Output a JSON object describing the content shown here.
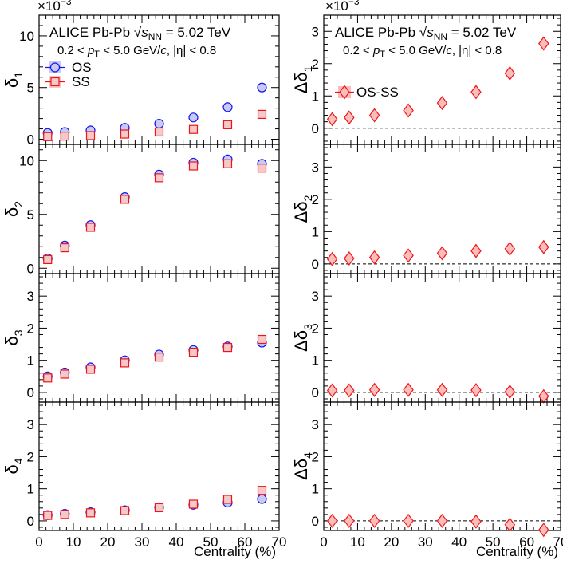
{
  "chart_data": {
    "type": "scatter",
    "x_label": "Centrality (%)",
    "x_range": [
      0,
      70
    ],
    "x_ticks": [
      "0",
      "10",
      "20",
      "30",
      "40",
      "50",
      "60",
      "70"
    ],
    "centrality": [
      2.5,
      7.5,
      15,
      25,
      35,
      45,
      55,
      65
    ],
    "multiplier": "×10",
    "multiplier_exp": "−3",
    "annotation": {
      "experiment": "ALICE Pb-Pb",
      "sqrt": "√",
      "s": "s",
      "nn": "NN",
      "energy": " = 5.02 TeV",
      "kin_pre": "0.2 < ",
      "kin_p": "p",
      "kin_T": "T",
      "kin_mid": " < 5.0 GeV/",
      "kin_c": "c",
      "kin_post": ", |η| < 0.8"
    },
    "legend_left": {
      "os": "OS",
      "ss": "SS"
    },
    "legend_right": {
      "diff": "OS-SS"
    },
    "colors": {
      "os_fill": "#c9c9f5",
      "os_edge": "#1515ee",
      "ss_fill": "#f5c9c9",
      "ss_edge": "#ee1515",
      "diff_fill": "#fbbcbc",
      "diff_edge": "#ee1515"
    },
    "left_panels": [
      {
        "ylabel_main": "δ",
        "ylabel_sub": "1",
        "ylim": [
          -0.5,
          12
        ],
        "ticks": [
          "0",
          "5",
          "10"
        ],
        "series": [
          {
            "name": "OS",
            "values": [
              0.6,
              0.7,
              0.85,
              1.1,
              1.5,
              2.1,
              3.1,
              5.0
            ]
          },
          {
            "name": "SS",
            "values": [
              0.25,
              0.3,
              0.35,
              0.5,
              0.7,
              0.95,
              1.4,
              2.4
            ]
          }
        ]
      },
      {
        "ylabel_main": "δ",
        "ylabel_sub": "2",
        "ylim": [
          -0.5,
          11.5
        ],
        "ticks": [
          "0",
          "5",
          "10"
        ],
        "series": [
          {
            "name": "OS",
            "values": [
              0.9,
              2.1,
              4.0,
              6.6,
              8.7,
              9.8,
              10.1,
              9.7
            ]
          },
          {
            "name": "SS",
            "values": [
              0.8,
              1.9,
              3.8,
              6.4,
              8.4,
              9.5,
              9.7,
              9.3
            ]
          }
        ]
      },
      {
        "ylabel_main": "δ",
        "ylabel_sub": "3",
        "ylim": [
          -0.3,
          3.7
        ],
        "ticks": [
          "0",
          "1",
          "2",
          "3"
        ],
        "series": [
          {
            "name": "OS",
            "values": [
              0.5,
              0.62,
              0.78,
              1.0,
              1.18,
              1.32,
              1.43,
              1.55
            ]
          },
          {
            "name": "SS",
            "values": [
              0.45,
              0.57,
              0.72,
              0.92,
              1.1,
              1.25,
              1.4,
              1.65
            ]
          }
        ]
      },
      {
        "ylabel_main": "δ",
        "ylabel_sub": "4",
        "ylim": [
          -0.3,
          3.7
        ],
        "ticks": [
          "0",
          "1",
          "2",
          "3"
        ],
        "series": [
          {
            "name": "OS",
            "values": [
              0.18,
              0.22,
              0.27,
              0.33,
              0.42,
              0.5,
              0.57,
              0.68
            ]
          },
          {
            "name": "SS",
            "values": [
              0.17,
              0.2,
              0.25,
              0.32,
              0.41,
              0.52,
              0.67,
              0.95
            ]
          }
        ]
      }
    ],
    "right_panels": [
      {
        "ylabel_main": "Δδ",
        "ylabel_sub": "1",
        "ylim": [
          -0.5,
          3.5
        ],
        "ticks": [
          "0",
          "1",
          "2",
          "3"
        ],
        "series": [
          {
            "name": "OS-SS",
            "values": [
              0.28,
              0.33,
              0.4,
              0.55,
              0.78,
              1.12,
              1.7,
              2.62
            ]
          }
        ]
      },
      {
        "ylabel_main": "Δδ",
        "ylabel_sub": "2",
        "ylim": [
          -0.3,
          3.7
        ],
        "ticks": [
          "0",
          "1",
          "2",
          "3"
        ],
        "series": [
          {
            "name": "OS-SS",
            "values": [
              0.15,
              0.17,
              0.2,
              0.26,
              0.33,
              0.4,
              0.47,
              0.52
            ]
          }
        ]
      },
      {
        "ylabel_main": "Δδ",
        "ylabel_sub": "3",
        "ylim": [
          -0.3,
          3.7
        ],
        "ticks": [
          "0",
          "1",
          "2",
          "3"
        ],
        "series": [
          {
            "name": "OS-SS",
            "values": [
              0.06,
              0.06,
              0.08,
              0.08,
              0.08,
              0.07,
              0.02,
              -0.12
            ]
          }
        ]
      },
      {
        "ylabel_main": "Δδ",
        "ylabel_sub": "4",
        "ylim": [
          -0.3,
          3.7
        ],
        "ticks": [
          "0",
          "1",
          "2",
          "3"
        ],
        "series": [
          {
            "name": "OS-SS",
            "values": [
              0.0,
              0.0,
              0.0,
              0.0,
              0.0,
              -0.02,
              -0.12,
              -0.28
            ]
          }
        ]
      }
    ]
  }
}
